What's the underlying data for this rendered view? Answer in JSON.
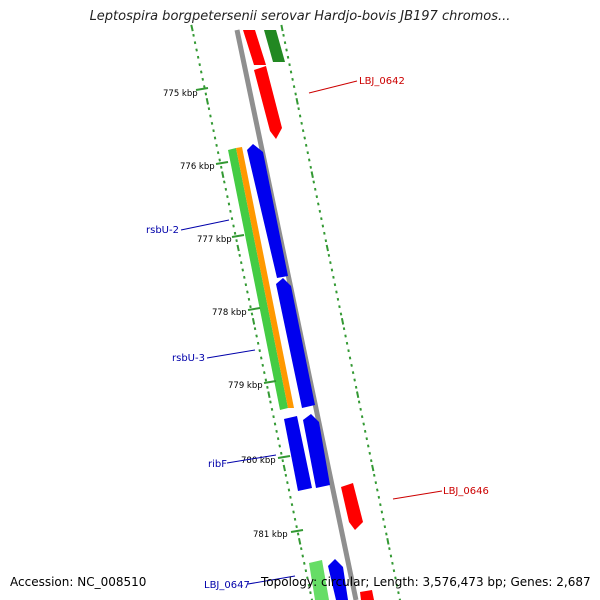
{
  "title": "Leptospira borgpetersenii serovar Hardjo-bovis JB197 chromos...",
  "footer": {
    "accession": "Accession: NC_008510",
    "stats": "Topology: circular; Length: 3,576,473 bp; Genes: 2,687"
  },
  "colors": {
    "background": "#ffffff",
    "backbone": "#8f8f8f",
    "red_gene": "#ff0000",
    "blue_gene": "#0000ee",
    "green_gene": "#44cc44",
    "dark_green_gene": "#228822",
    "orange_gene": "#ff9900",
    "tick": "#339933",
    "label_red": "#cc0000",
    "label_blue": "#0000aa"
  },
  "scale_labels": [
    "775 kbp",
    "776 kbp",
    "777 kbp",
    "778 kbp",
    "779 kbp",
    "780 kbp",
    "781 kbp"
  ],
  "gene_labels": [
    {
      "id": "LBJ_0642",
      "text": "LBJ_0642",
      "color": "red"
    },
    {
      "id": "rsbU-2",
      "text": "rsbU-2",
      "color": "blue"
    },
    {
      "id": "rsbU-3",
      "text": "rsbU-3",
      "color": "blue"
    },
    {
      "id": "ribF",
      "text": "ribF",
      "color": "blue"
    },
    {
      "id": "LBJ_0646",
      "text": "LBJ_0646",
      "color": "red"
    },
    {
      "id": "LBJ_0647",
      "text": "LBJ_0647",
      "color": "blue"
    }
  ]
}
